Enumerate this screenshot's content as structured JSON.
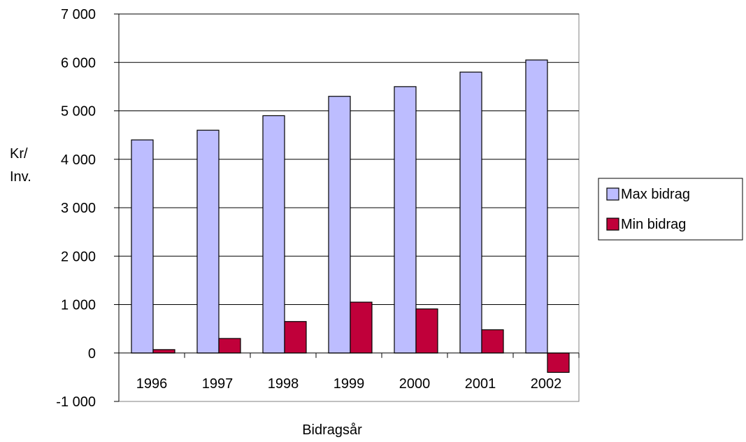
{
  "chart_data": {
    "type": "bar",
    "title": "",
    "xlabel": "Bidragsår",
    "ylabel_line1": "Kr/",
    "ylabel_line2": "Inv.",
    "categories": [
      "1996",
      "1997",
      "1998",
      "1999",
      "2000",
      "2001",
      "2002"
    ],
    "series": [
      {
        "name": "Max bidrag",
        "color": "#BDBDFF",
        "values": [
          4400,
          4600,
          4900,
          5300,
          5500,
          5800,
          6050
        ]
      },
      {
        "name": "Min bidrag",
        "color": "#C0003A",
        "values": [
          70,
          300,
          650,
          1050,
          910,
          480,
          -400
        ]
      }
    ],
    "ylim": [
      -1000,
      7000
    ],
    "yticks": [
      -1000,
      0,
      1000,
      2000,
      3000,
      4000,
      5000,
      6000,
      7000
    ],
    "ytick_labels": [
      "-1 000",
      "0",
      "1 000",
      "2 000",
      "3 000",
      "4 000",
      "5 000",
      "6 000",
      "7 000"
    ],
    "grid": true,
    "legend_position": "right"
  }
}
